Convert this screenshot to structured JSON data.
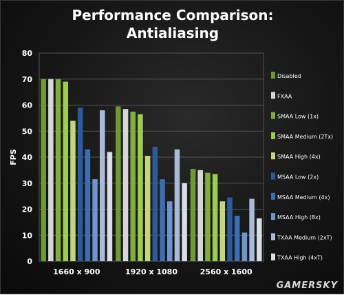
{
  "chart_data": {
    "type": "bar",
    "title": "Performance Comparison:",
    "subtitle": "Antialiasing",
    "xlabel": "",
    "ylabel": "FPS",
    "ylim": [
      0,
      80
    ],
    "yticks": [
      0,
      10,
      20,
      30,
      40,
      50,
      60,
      70,
      80
    ],
    "grid": true,
    "legend_position": "right",
    "categories": [
      "1660 x 900",
      "1920 x 1080",
      "2560 x 1600"
    ],
    "series": [
      {
        "name": "Disabled",
        "values": [
          70,
          59.5,
          35.5
        ],
        "color": "#6e9a35"
      },
      {
        "name": "FXAA",
        "values": [
          70,
          58.5,
          35
        ],
        "color": "#d6d6d6"
      },
      {
        "name": "SMAA Low (1x)",
        "values": [
          70,
          57.5,
          34
        ],
        "color": "#7fae3c"
      },
      {
        "name": "SMAA Medium (2Tx)",
        "values": [
          69,
          56.5,
          33.5
        ],
        "color": "#9ccc52"
      },
      {
        "name": "SMAA High (4x)",
        "values": [
          54,
          40.5,
          23
        ],
        "color": "#c3d67e"
      },
      {
        "name": "MSAA Low (2x)",
        "values": [
          59,
          44,
          24.5
        ],
        "color": "#2c5a9c"
      },
      {
        "name": "MSAA Medium (4x)",
        "values": [
          43,
          31.5,
          17.5
        ],
        "color": "#3d6eb4"
      },
      {
        "name": "MSAA High (8x)",
        "values": [
          31.5,
          23,
          11
        ],
        "color": "#6f95cf"
      },
      {
        "name": "TXAA Medium (2xT)",
        "values": [
          58,
          43,
          24
        ],
        "color": "#aabbd8"
      },
      {
        "name": "TXAA High (4xT)",
        "values": [
          42,
          30,
          16.5
        ],
        "color": "#d8dde6"
      }
    ]
  },
  "watermark": "GAMERSKY"
}
